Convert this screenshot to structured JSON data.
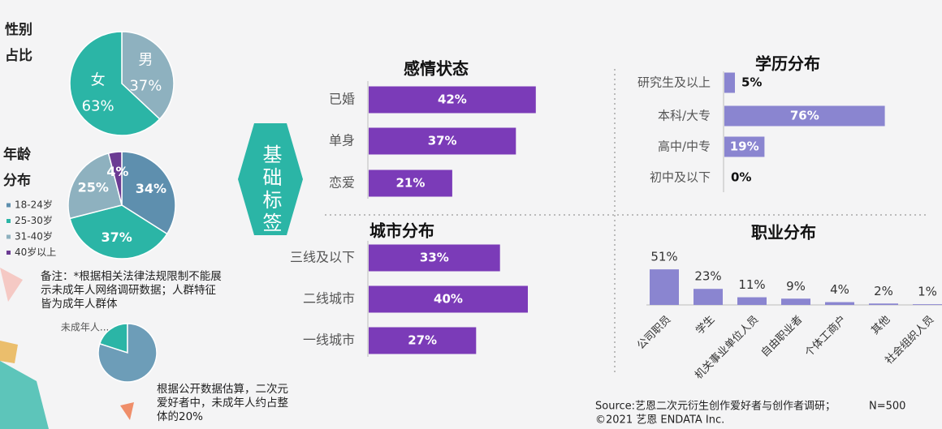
{
  "badge": "基础标签",
  "note": "备注：*根据相关法律法规限制不能展示未成年人网络调研数据；人群特征皆为成年人群体",
  "caption": "根据公开数据估算，二次元爱好者中，未成年人约占整体的20%",
  "source": {
    "text": "Source:艺恩二次元衍生创作爱好者与创作者调研；",
    "sample": "N=500",
    "copyright": "©2021 艺恩 ENDATA Inc."
  },
  "chart_data": [
    {
      "type": "pie",
      "title": "性别占比",
      "categories": [
        "男",
        "女"
      ],
      "values": [
        37,
        63
      ],
      "value_labels": [
        "37%",
        "63%"
      ],
      "colors": [
        "#8eb1bf",
        "#2bb5a6"
      ]
    },
    {
      "type": "pie",
      "title": "年龄分布",
      "categories": [
        "18-24岁",
        "25-30岁",
        "31-40岁",
        "40岁以上"
      ],
      "values": [
        34,
        37,
        25,
        4
      ],
      "value_labels": [
        "34%",
        "37%",
        "25%",
        "4%"
      ],
      "colors": [
        "#5e8fae",
        "#2bb5a6",
        "#8eb1bf",
        "#6b3b93"
      ],
      "legend": "left"
    },
    {
      "type": "hbar",
      "title": "感情状态",
      "categories": [
        "已婚",
        "单身",
        "恋爱"
      ],
      "values": [
        42,
        37,
        21
      ],
      "value_labels": [
        "42%",
        "37%",
        "21%"
      ],
      "color": "#7b3bb8"
    },
    {
      "type": "hbar",
      "title": "城市分布",
      "categories": [
        "三线及以下",
        "二线城市",
        "一线城市"
      ],
      "values": [
        33,
        40,
        27
      ],
      "value_labels": [
        "33%",
        "40%",
        "27%"
      ],
      "color": "#7b3bb8"
    },
    {
      "type": "hbar",
      "title": "学历分布",
      "categories": [
        "研究生及以上",
        "本科/大专",
        "高中/中专",
        "初中及以下"
      ],
      "values": [
        5,
        76,
        19,
        0
      ],
      "value_labels": [
        "5%",
        "76%",
        "19%",
        "0%"
      ],
      "color": "#8a85d0"
    },
    {
      "type": "bar",
      "title": "职业分布",
      "categories": [
        "公司职员",
        "学生",
        "机关事业单位人员",
        "自由职业者",
        "个体工商户",
        "其他",
        "社会组织人员"
      ],
      "values": [
        51,
        23,
        11,
        9,
        4,
        2,
        1
      ],
      "value_labels": [
        "51%",
        "23%",
        "11%",
        "9%",
        "4%",
        "2%",
        "1%"
      ],
      "color": "#8a85d0"
    },
    {
      "type": "pie",
      "categories": [
        "未成年人...",
        null
      ],
      "values": [
        20,
        80
      ],
      "colors": [
        "#2bb5a6",
        "#6d9db8"
      ]
    }
  ]
}
